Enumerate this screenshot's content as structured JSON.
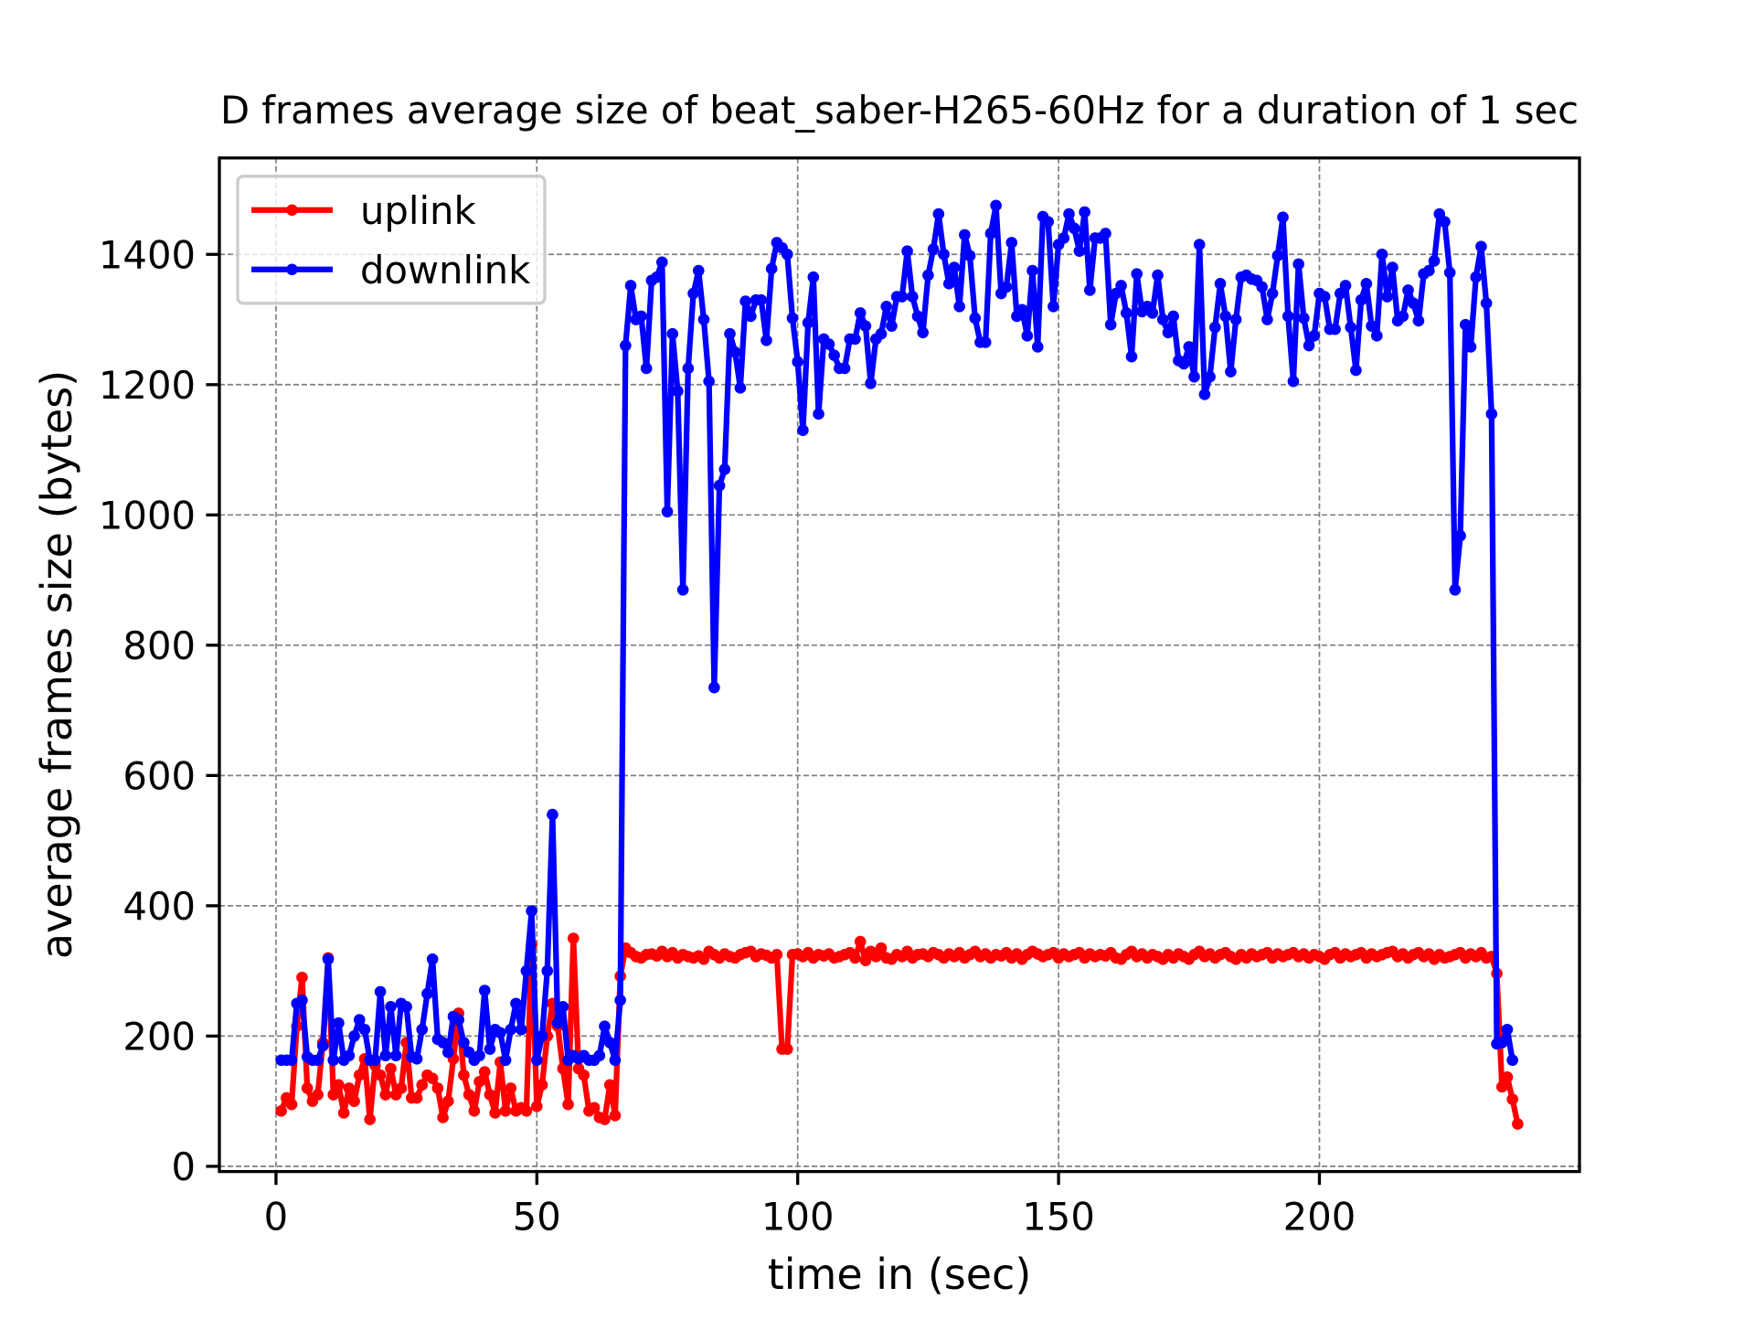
{
  "chart_data": {
    "type": "line",
    "title": "D frames average size of beat_saber-H265-60Hz for a duration of 1 sec",
    "x_label": "time in (sec)",
    "y_label": "average frames size (bytes)",
    "x": [
      1,
      2,
      3,
      4,
      5,
      6,
      7,
      8,
      9,
      10,
      11,
      12,
      13,
      14,
      15,
      16,
      17,
      18,
      19,
      20,
      21,
      22,
      23,
      24,
      25,
      26,
      27,
      28,
      29,
      30,
      31,
      32,
      33,
      34,
      35,
      36,
      37,
      38,
      39,
      40,
      41,
      42,
      43,
      44,
      45,
      46,
      47,
      48,
      49,
      50,
      51,
      52,
      53,
      54,
      55,
      56,
      57,
      58,
      59,
      60,
      61,
      62,
      63,
      64,
      65,
      66,
      67,
      68,
      69,
      70,
      71,
      72,
      73,
      74,
      75,
      76,
      77,
      78,
      79,
      80,
      81,
      82,
      83,
      84,
      85,
      86,
      87,
      88,
      89,
      90,
      91,
      92,
      93,
      94,
      95,
      96,
      97,
      98,
      99,
      100,
      101,
      102,
      103,
      104,
      105,
      106,
      107,
      108,
      109,
      110,
      111,
      112,
      113,
      114,
      115,
      116,
      117,
      118,
      119,
      120,
      121,
      122,
      123,
      124,
      125,
      126,
      127,
      128,
      129,
      130,
      131,
      132,
      133,
      134,
      135,
      136,
      137,
      138,
      139,
      140,
      141,
      142,
      143,
      144,
      145,
      146,
      147,
      148,
      149,
      150,
      151,
      152,
      153,
      154,
      155,
      156,
      157,
      158,
      159,
      160,
      161,
      162,
      163,
      164,
      165,
      166,
      167,
      168,
      169,
      170,
      171,
      172,
      173,
      174,
      175,
      176,
      177,
      178,
      179,
      180,
      181,
      182,
      183,
      184,
      185,
      186,
      187,
      188,
      189,
      190,
      191,
      192,
      193,
      194,
      195,
      196,
      197,
      198,
      199,
      200,
      201,
      202,
      203,
      204,
      205,
      206,
      207,
      208,
      209,
      210,
      211,
      212,
      213,
      214,
      215,
      216,
      217,
      218,
      219,
      220,
      221,
      222,
      223,
      224,
      225,
      226,
      227,
      228,
      229,
      230,
      231,
      232,
      233,
      234,
      235,
      236,
      237,
      238
    ],
    "series": [
      {
        "name": "uplink",
        "color": "#ff0000",
        "values": [
          85,
          105,
          95,
          215,
          290,
          120,
          100,
          110,
          190,
          320,
          110,
          125,
          82,
          120,
          100,
          140,
          165,
          72,
          155,
          140,
          110,
          150,
          110,
          120,
          190,
          105,
          105,
          125,
          140,
          135,
          120,
          75,
          100,
          165,
          235,
          140,
          110,
          85,
          130,
          145,
          110,
          82,
          160,
          85,
          120,
          85,
          90,
          85,
          340,
          92,
          125,
          200,
          250,
          215,
          150,
          95,
          350,
          150,
          140,
          85,
          90,
          75,
          72,
          125,
          78,
          292,
          335,
          328,
          322,
          320,
          325,
          326,
          323,
          330,
          322,
          328,
          320,
          325,
          322,
          320,
          323,
          318,
          330,
          325,
          320,
          326,
          322,
          320,
          325,
          328,
          330,
          322,
          326,
          324,
          320,
          325,
          180,
          180,
          325,
          326,
          322,
          328,
          320,
          325,
          323,
          326,
          320,
          322,
          325,
          328,
          320,
          345,
          316,
          330,
          322,
          335,
          320,
          318,
          325,
          322,
          330,
          320,
          325,
          326,
          322,
          328,
          325,
          320,
          326,
          322,
          328,
          320,
          325,
          330,
          322,
          326,
          320,
          325,
          323,
          328,
          320,
          326,
          318,
          325,
          330,
          326,
          322,
          325,
          328,
          320,
          326,
          322,
          325,
          328,
          320,
          326,
          322,
          325,
          323,
          328,
          320,
          318,
          325,
          330,
          322,
          326,
          320,
          325,
          322,
          318,
          325,
          320,
          326,
          322,
          318,
          325,
          330,
          322,
          326,
          320,
          325,
          328,
          322,
          318,
          325,
          320,
          326,
          322,
          325,
          328,
          320,
          326,
          322,
          325,
          328,
          322,
          326,
          320,
          325,
          322,
          318,
          325,
          328,
          320,
          326,
          322,
          325,
          328,
          320,
          326,
          322,
          325,
          328,
          330,
          322,
          326,
          320,
          325,
          328,
          322,
          326,
          318,
          325,
          320,
          322,
          325,
          328,
          320,
          326,
          322,
          328,
          320,
          322,
          296,
          122,
          137,
          103,
          65
        ]
      },
      {
        "name": "downlink",
        "color": "#0000ff",
        "values": [
          163,
          163,
          163,
          250,
          255,
          168,
          163,
          163,
          185,
          318,
          163,
          220,
          163,
          170,
          200,
          225,
          210,
          163,
          163,
          268,
          170,
          245,
          170,
          250,
          245,
          168,
          165,
          210,
          265,
          318,
          195,
          190,
          175,
          230,
          225,
          190,
          175,
          163,
          170,
          270,
          180,
          210,
          205,
          163,
          210,
          250,
          210,
          300,
          392,
          163,
          200,
          300,
          540,
          220,
          245,
          163,
          170,
          165,
          170,
          163,
          163,
          170,
          215,
          190,
          163,
          255,
          1260,
          1352,
          1300,
          1305,
          1225,
          1360,
          1365,
          1388,
          1005,
          1278,
          1190,
          885,
          1225,
          1340,
          1375,
          1300,
          1205,
          735,
          1045,
          1070,
          1278,
          1250,
          1195,
          1328,
          1305,
          1330,
          1330,
          1268,
          1378,
          1418,
          1410,
          1400,
          1302,
          1235,
          1130,
          1295,
          1365,
          1155,
          1270,
          1262,
          1245,
          1225,
          1225,
          1270,
          1270,
          1310,
          1290,
          1202,
          1270,
          1278,
          1320,
          1290,
          1335,
          1335,
          1405,
          1335,
          1305,
          1280,
          1368,
          1408,
          1462,
          1400,
          1355,
          1380,
          1320,
          1430,
          1398,
          1302,
          1265,
          1265,
          1432,
          1475,
          1340,
          1350,
          1418,
          1305,
          1315,
          1275,
          1375,
          1258,
          1458,
          1450,
          1320,
          1415,
          1425,
          1462,
          1440,
          1405,
          1465,
          1345,
          1425,
          1425,
          1432,
          1292,
          1340,
          1352,
          1310,
          1243,
          1370,
          1312,
          1320,
          1310,
          1368,
          1300,
          1280,
          1305,
          1237,
          1232,
          1258,
          1212,
          1415,
          1185,
          1212,
          1288,
          1355,
          1305,
          1220,
          1300,
          1365,
          1368,
          1362,
          1360,
          1350,
          1300,
          1340,
          1398,
          1457,
          1305,
          1205,
          1385,
          1302,
          1260,
          1275,
          1340,
          1335,
          1285,
          1285,
          1340,
          1352,
          1288,
          1222,
          1330,
          1355,
          1290,
          1275,
          1400,
          1335,
          1380,
          1298,
          1305,
          1345,
          1325,
          1298,
          1370,
          1375,
          1390,
          1462,
          1450,
          1372,
          885,
          968,
          1292,
          1258,
          1365,
          1412,
          1325,
          1155,
          188,
          190,
          210,
          163,
          null
        ]
      }
    ],
    "xlim": [
      -10.85,
      249.85
    ],
    "ylim": [
      -8,
      1548
    ],
    "xticks": [
      0,
      50,
      100,
      150,
      200
    ],
    "yticks": [
      0,
      200,
      400,
      600,
      800,
      1000,
      1200,
      1400
    ],
    "grid": true,
    "legend": "upper left"
  }
}
